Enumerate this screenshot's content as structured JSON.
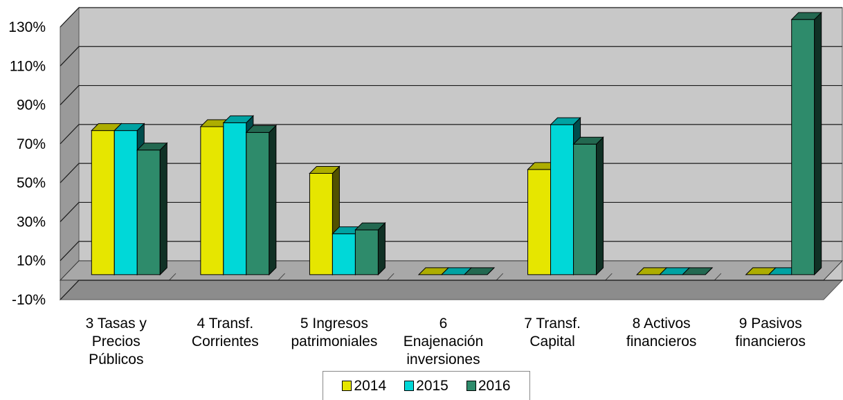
{
  "chart_data": {
    "type": "bar",
    "categories": [
      [
        "3 Tasas y",
        "Precios",
        "Públicos"
      ],
      [
        "4 Transf.",
        "Corrientes"
      ],
      [
        "5 Ingresos",
        "patrimoniales"
      ],
      [
        "6",
        "Enajenación",
        "inversiones"
      ],
      [
        "7 Transf.",
        "Capital"
      ],
      [
        "8 Activos",
        "financieros"
      ],
      [
        "9 Pasivos",
        "financieros"
      ]
    ],
    "series": [
      {
        "name": "2014",
        "color": "#e6e600",
        "values": [
          74,
          76,
          52,
          0,
          54,
          0,
          0
        ]
      },
      {
        "name": "2015",
        "color": "#00d8d8",
        "values": [
          74,
          78,
          21,
          0,
          77,
          0,
          0
        ]
      },
      {
        "name": "2016",
        "color": "#2e8b6b",
        "values": [
          64,
          73,
          23,
          0,
          67,
          0,
          131
        ]
      }
    ],
    "yticks": [
      "130%",
      "110%",
      "90%",
      "70%",
      "50%",
      "30%",
      "10%",
      "-10%"
    ],
    "ylim": [
      -10,
      130
    ],
    "ylabel_unit": "%",
    "legend_position": "bottom",
    "grid": true
  }
}
